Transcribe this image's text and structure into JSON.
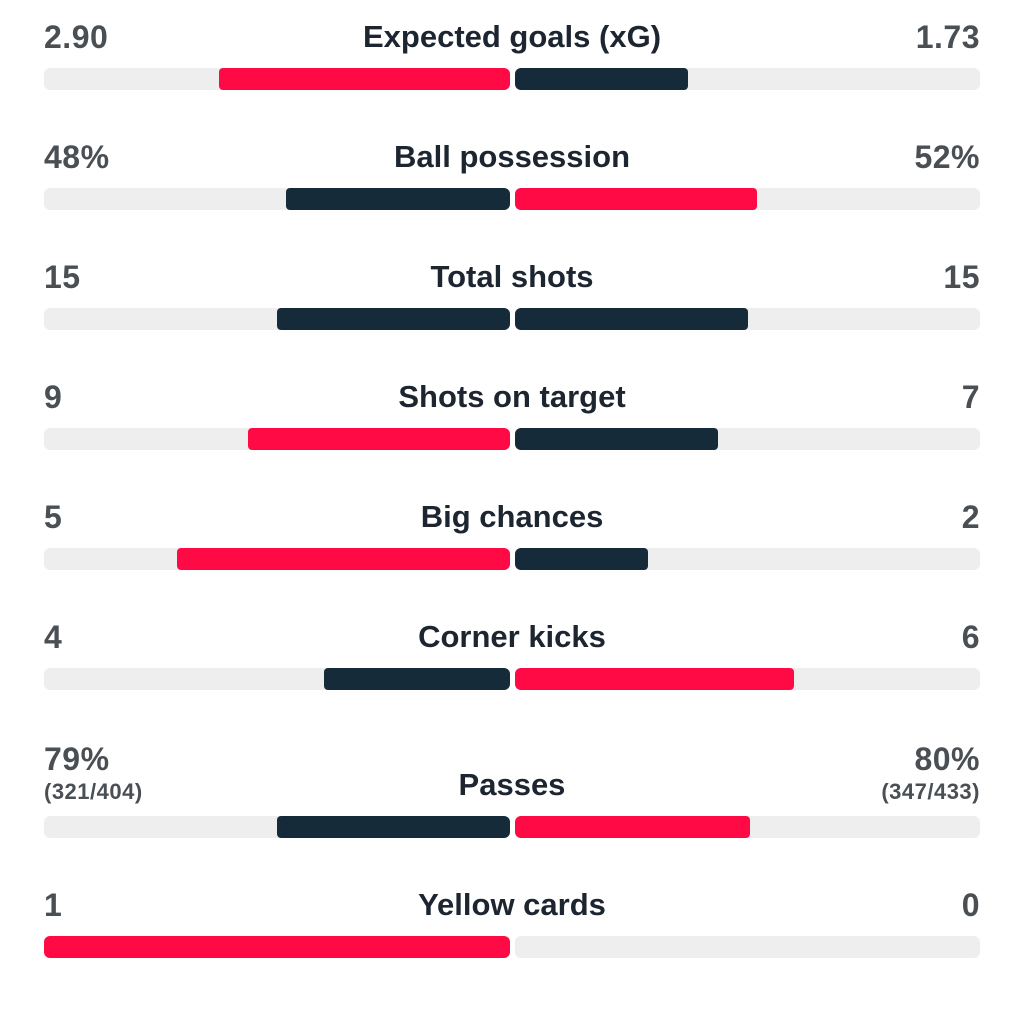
{
  "colors": {
    "win": "#ff0a45",
    "lose": "#152b39",
    "track": "#eeeeee"
  },
  "stats": [
    {
      "label": "Expected goals (xG)",
      "home": "2.90",
      "away": "1.73",
      "home_fill": 0.625,
      "away_fill": 0.373,
      "home_color": "#ff0a45",
      "away_color": "#152b39"
    },
    {
      "label": "Ball possession",
      "home": "48%",
      "away": "52%",
      "home_fill": 0.48,
      "away_fill": 0.52,
      "home_color": "#152b39",
      "away_color": "#ff0a45"
    },
    {
      "label": "Total shots",
      "home": "15",
      "away": "15",
      "home_fill": 0.5,
      "away_fill": 0.5,
      "home_color": "#152b39",
      "away_color": "#152b39"
    },
    {
      "label": "Shots on target",
      "home": "9",
      "away": "7",
      "home_fill": 0.5625,
      "away_fill": 0.4375,
      "home_color": "#ff0a45",
      "away_color": "#152b39"
    },
    {
      "label": "Big chances",
      "home": "5",
      "away": "2",
      "home_fill": 0.714,
      "away_fill": 0.286,
      "home_color": "#ff0a45",
      "away_color": "#152b39"
    },
    {
      "label": "Corner kicks",
      "home": "4",
      "away": "6",
      "home_fill": 0.4,
      "away_fill": 0.6,
      "home_color": "#152b39",
      "away_color": "#ff0a45"
    },
    {
      "label": "Passes",
      "home": "79%",
      "home_sub": "(321/404)",
      "away": "80%",
      "away_sub": "(347/433)",
      "home_fill": 0.5,
      "away_fill": 0.505,
      "home_color": "#152b39",
      "away_color": "#ff0a45"
    },
    {
      "label": "Yellow cards",
      "home": "1",
      "away": "0",
      "home_fill": 1.0,
      "away_fill": 0.0,
      "home_color": "#ff0a45",
      "away_color": "#152b39"
    }
  ]
}
